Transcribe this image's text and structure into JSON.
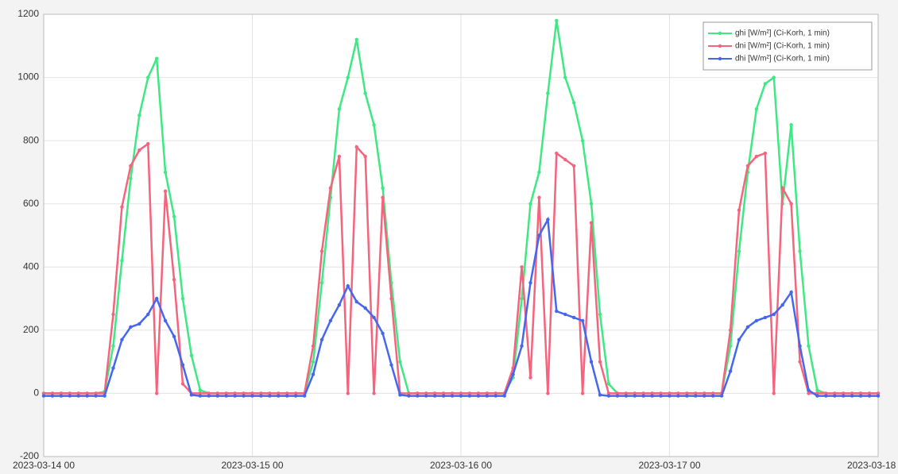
{
  "chart_data": {
    "type": "line",
    "x": [
      "2023-03-14 00",
      "2023-03-14 01",
      "2023-03-14 02",
      "2023-03-14 03",
      "2023-03-14 04",
      "2023-03-14 05",
      "2023-03-14 06",
      "2023-03-14 07",
      "2023-03-14 08",
      "2023-03-14 09",
      "2023-03-14 10",
      "2023-03-14 11",
      "2023-03-14 12",
      "2023-03-14 13",
      "2023-03-14 14",
      "2023-03-14 15",
      "2023-03-14 16",
      "2023-03-14 17",
      "2023-03-14 18",
      "2023-03-14 19",
      "2023-03-14 20",
      "2023-03-14 21",
      "2023-03-14 22",
      "2023-03-14 23",
      "2023-03-15 00",
      "2023-03-15 01",
      "2023-03-15 02",
      "2023-03-15 03",
      "2023-03-15 04",
      "2023-03-15 05",
      "2023-03-15 06",
      "2023-03-15 07",
      "2023-03-15 08",
      "2023-03-15 09",
      "2023-03-15 10",
      "2023-03-15 11",
      "2023-03-15 12",
      "2023-03-15 13",
      "2023-03-15 14",
      "2023-03-15 15",
      "2023-03-15 16",
      "2023-03-15 17",
      "2023-03-15 18",
      "2023-03-15 19",
      "2023-03-15 20",
      "2023-03-15 21",
      "2023-03-15 22",
      "2023-03-15 23",
      "2023-03-16 00",
      "2023-03-16 01",
      "2023-03-16 02",
      "2023-03-16 03",
      "2023-03-16 04",
      "2023-03-16 05",
      "2023-03-16 06",
      "2023-03-16 07",
      "2023-03-16 08",
      "2023-03-16 09",
      "2023-03-16 10",
      "2023-03-16 11",
      "2023-03-16 12",
      "2023-03-16 13",
      "2023-03-16 14",
      "2023-03-16 15",
      "2023-03-16 16",
      "2023-03-16 17",
      "2023-03-16 18",
      "2023-03-16 19",
      "2023-03-16 20",
      "2023-03-16 21",
      "2023-03-16 22",
      "2023-03-16 23",
      "2023-03-17 00",
      "2023-03-17 01",
      "2023-03-17 02",
      "2023-03-17 03",
      "2023-03-17 04",
      "2023-03-17 05",
      "2023-03-17 06",
      "2023-03-17 07",
      "2023-03-17 08",
      "2023-03-17 09",
      "2023-03-17 10",
      "2023-03-17 11",
      "2023-03-17 12",
      "2023-03-17 13",
      "2023-03-17 14",
      "2023-03-17 15",
      "2023-03-17 16",
      "2023-03-17 17",
      "2023-03-17 18",
      "2023-03-17 19",
      "2023-03-17 20",
      "2023-03-17 21",
      "2023-03-17 22",
      "2023-03-17 23",
      "2023-03-18 00"
    ],
    "series": [
      {
        "name": "ghi [W/m²] (Ci-Korh, 1 min)",
        "color": "#3ee883",
        "values": [
          0,
          0,
          0,
          0,
          0,
          0,
          0,
          5,
          150,
          420,
          680,
          880,
          1000,
          1060,
          700,
          560,
          300,
          120,
          10,
          0,
          0,
          0,
          0,
          0,
          0,
          0,
          0,
          0,
          0,
          0,
          0,
          100,
          350,
          620,
          900,
          1000,
          1120,
          950,
          850,
          650,
          350,
          100,
          0,
          0,
          0,
          0,
          0,
          0,
          0,
          0,
          0,
          0,
          0,
          0,
          50,
          300,
          600,
          700,
          950,
          1180,
          1000,
          920,
          800,
          600,
          250,
          30,
          0,
          0,
          0,
          0,
          0,
          0,
          0,
          0,
          0,
          0,
          0,
          0,
          0,
          150,
          450,
          700,
          900,
          980,
          1000,
          600,
          850,
          450,
          150,
          10,
          0,
          0,
          0,
          0,
          0,
          0,
          0
        ]
      },
      {
        "name": "dni [W/m²] (Ci-Korh, 1 min)",
        "color": "#f5647c",
        "values": [
          0,
          0,
          0,
          0,
          0,
          0,
          0,
          0,
          250,
          590,
          720,
          770,
          790,
          0,
          640,
          360,
          30,
          0,
          0,
          0,
          0,
          0,
          0,
          0,
          0,
          0,
          0,
          0,
          0,
          0,
          0,
          150,
          450,
          650,
          750,
          0,
          780,
          750,
          0,
          620,
          300,
          0,
          0,
          0,
          0,
          0,
          0,
          0,
          0,
          0,
          0,
          0,
          0,
          0,
          80,
          400,
          50,
          620,
          0,
          760,
          740,
          720,
          0,
          540,
          100,
          0,
          0,
          0,
          0,
          0,
          0,
          0,
          0,
          0,
          0,
          0,
          0,
          0,
          0,
          200,
          580,
          720,
          750,
          760,
          0,
          650,
          600,
          100,
          0,
          0,
          0,
          0,
          0,
          0,
          0,
          0,
          0
        ]
      },
      {
        "name": "dhi [W/m²] (Ci-Korh, 1 min)",
        "color": "#4566ef",
        "values": [
          -8,
          -8,
          -8,
          -8,
          -8,
          -8,
          -8,
          -8,
          80,
          170,
          210,
          220,
          250,
          300,
          230,
          180,
          90,
          -5,
          -8,
          -8,
          -8,
          -8,
          -8,
          -8,
          -8,
          -8,
          -8,
          -8,
          -8,
          -8,
          -8,
          60,
          170,
          230,
          280,
          340,
          290,
          270,
          240,
          190,
          90,
          -5,
          -8,
          -8,
          -8,
          -8,
          -8,
          -8,
          -8,
          -8,
          -8,
          -8,
          -8,
          -8,
          60,
          150,
          350,
          500,
          550,
          260,
          250,
          240,
          230,
          100,
          -5,
          -8,
          -8,
          -8,
          -8,
          -8,
          -8,
          -8,
          -8,
          -8,
          -8,
          -8,
          -8,
          -8,
          -8,
          70,
          170,
          210,
          230,
          240,
          250,
          280,
          320,
          150,
          10,
          -8,
          -8,
          -8,
          -8,
          -8,
          -8,
          -8,
          -8
        ]
      }
    ],
    "xlim": [
      "2023-03-14 00",
      "2023-03-18 00"
    ],
    "xticks": [
      "2023-03-14 00",
      "2023-03-15 00",
      "2023-03-16 00",
      "2023-03-17 00",
      "2023-03-18 00"
    ],
    "ylim": [
      -200,
      1200
    ],
    "yticks": [
      -200,
      0,
      200,
      400,
      600,
      800,
      1000,
      1200
    ],
    "grid": true,
    "legend": "northeast"
  }
}
